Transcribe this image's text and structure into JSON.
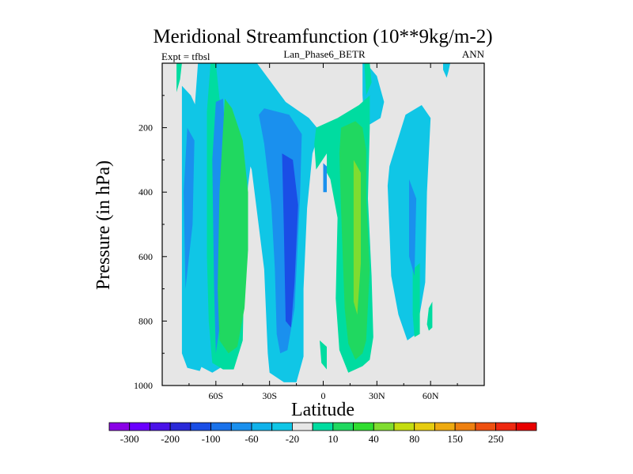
{
  "chart_data": {
    "type": "contour",
    "title": "Meridional Streamfunction (10**9kg/m-2)",
    "subtitle_left": "Expt = tfbsl",
    "subtitle_center": "Lan_Phase6_BETR",
    "subtitle_right": "ANN",
    "xlabel": "Latitude",
    "ylabel": "Pressure (in hPa)",
    "xlim": [
      -90,
      90
    ],
    "ylim": [
      1000,
      0
    ],
    "x_ticks": [
      {
        "value": -60,
        "label": "60S"
      },
      {
        "value": -30,
        "label": "30S"
      },
      {
        "value": 0,
        "label": "0"
      },
      {
        "value": 30,
        "label": "30N"
      },
      {
        "value": 60,
        "label": "60N"
      }
    ],
    "y_ticks": [
      {
        "value": 200,
        "label": "200"
      },
      {
        "value": 400,
        "label": "400"
      },
      {
        "value": 600,
        "label": "600"
      },
      {
        "value": 800,
        "label": "800"
      },
      {
        "value": 1000,
        "label": "1000"
      }
    ],
    "background_level": "-10 to 10",
    "colorbar": {
      "colors": [
        "#8a00e6",
        "#6a00ff",
        "#4a12e8",
        "#2a2ad8",
        "#1a4ee6",
        "#1a72ea",
        "#1a90ee",
        "#10b2ea",
        "#10c6e6",
        "#e6e6e6",
        "#00dca0",
        "#20d860",
        "#30dd30",
        "#80dc30",
        "#c4dc10",
        "#e6cc10",
        "#eeaa10",
        "#ee8010",
        "#ee5010",
        "#ee2810",
        "#e80000"
      ],
      "labels": [
        "-300",
        "-200",
        "-100",
        "-60",
        "-20",
        "10",
        "40",
        "80",
        "150",
        "250"
      ]
    },
    "regions": [
      {
        "label": "-20 to -10",
        "lat": [
          -79,
          -74,
          -69,
          -66,
          -64,
          -63,
          -65,
          -69,
          -76,
          -79
        ],
        "p": [
          70,
          100,
          160,
          330,
          500,
          700,
          900,
          955,
          945,
          900
        ]
      },
      {
        "label": "-20 to -10",
        "lat": [
          -70,
          -55,
          -38,
          -36,
          -38,
          -42,
          -45,
          -50,
          -56,
          -62,
          -69,
          -72,
          -74,
          -74,
          -72
        ],
        "p": [
          0,
          0,
          0,
          110,
          200,
          380,
          620,
          820,
          940,
          960,
          940,
          820,
          600,
          350,
          150
        ]
      },
      {
        "label": "-20 to -10",
        "lat": [
          -53,
          -37,
          -21,
          -8,
          -2,
          -6,
          -9,
          -11,
          -11,
          -15,
          -22,
          -30,
          -31,
          -33,
          -40,
          -50,
          -52
        ],
        "p": [
          0,
          0,
          120,
          170,
          210,
          280,
          450,
          700,
          910,
          990,
          990,
          960,
          900,
          640,
          330,
          190,
          80
        ]
      },
      {
        "label": "-20 to -10",
        "lat": [
          22,
          24,
          30,
          34,
          32,
          23,
          22
        ],
        "p": [
          0,
          0,
          40,
          120,
          170,
          200,
          100
        ]
      },
      {
        "label": "-20 to -10",
        "lat": [
          37,
          46,
          55,
          60,
          58,
          57,
          52,
          47,
          42,
          38,
          37,
          36
        ],
        "p": [
          320,
          160,
          130,
          170,
          400,
          680,
          840,
          860,
          780,
          660,
          520,
          380
        ]
      },
      {
        "label": "-20 to -10",
        "lat": [
          67,
          71,
          70,
          69,
          67
        ],
        "p": [
          0,
          0,
          25,
          45,
          20
        ]
      },
      {
        "label": "10 to 40",
        "lat": [
          -63,
          -60,
          -58,
          -53,
          -46,
          -44,
          -45,
          -50,
          -56,
          -62,
          -64,
          -65,
          -65
        ],
        "p": [
          0,
          0,
          110,
          200,
          420,
          620,
          860,
          950,
          950,
          930,
          800,
          600,
          150
        ]
      },
      {
        "label": "10 to 40",
        "lat": [
          -82,
          -79,
          -80,
          -82
        ],
        "p": [
          0,
          0,
          50,
          90
        ]
      },
      {
        "label": "10 to 40",
        "lat": [
          -4,
          8,
          20,
          26,
          26,
          25,
          27,
          28,
          26,
          22,
          14,
          9,
          7,
          8,
          4,
          2,
          2,
          -4,
          -5
        ],
        "p": [
          200,
          170,
          130,
          100,
          200,
          420,
          660,
          850,
          920,
          940,
          960,
          890,
          730,
          480,
          360,
          340,
          280,
          330,
          250
        ]
      },
      {
        "label": "10 to 40",
        "lat": [
          -2,
          2,
          2,
          -1
        ],
        "p": [
          860,
          880,
          950,
          930
        ]
      },
      {
        "label": "10 to 40",
        "lat": [
          23,
          26,
          27,
          24
        ],
        "p": [
          0,
          0,
          60,
          100
        ]
      },
      {
        "label": "10 to 40",
        "lat": [
          50,
          54,
          54,
          51,
          50
        ],
        "p": [
          640,
          620,
          840,
          850,
          780
        ]
      },
      {
        "label": "10 to 40",
        "lat": [
          59,
          61,
          61,
          59,
          58
        ],
        "p": [
          760,
          740,
          820,
          830,
          810
        ]
      },
      {
        "label": "-60 to -20",
        "lat": [
          -76,
          -72,
          -73,
          -77,
          -78
        ],
        "p": [
          200,
          240,
          500,
          700,
          400
        ]
      },
      {
        "label": "-60 to -20",
        "lat": [
          -60,
          -56,
          -54,
          -55,
          -58,
          -60,
          -61,
          -62
        ],
        "p": [
          120,
          110,
          300,
          560,
          820,
          900,
          700,
          300
        ]
      },
      {
        "label": "-60 to -20",
        "lat": [
          -33,
          -19,
          -12,
          -13,
          -16,
          -20,
          -24,
          -26,
          -27,
          -29,
          -33,
          -36
        ],
        "p": [
          140,
          160,
          220,
          420,
          760,
          890,
          900,
          840,
          640,
          440,
          250,
          160
        ]
      },
      {
        "label": "-60 to -20",
        "lat": [
          0,
          2,
          2,
          0
        ],
        "p": [
          310,
          320,
          400,
          400
        ]
      },
      {
        "label": "-60 to -20",
        "lat": [
          48,
          52,
          51,
          48
        ],
        "p": [
          360,
          420,
          660,
          600
        ]
      },
      {
        "label": "40 to 80",
        "lat": [
          -55,
          -51,
          -45,
          -42,
          -42,
          -44,
          -48,
          -53,
          -58,
          -59,
          -58
        ],
        "p": [
          110,
          140,
          240,
          400,
          580,
          760,
          880,
          900,
          860,
          700,
          400
        ]
      },
      {
        "label": "40 to 80",
        "lat": [
          10,
          18,
          22,
          24,
          24,
          26,
          24,
          22,
          18,
          14,
          12,
          10,
          9
        ],
        "p": [
          200,
          180,
          200,
          270,
          420,
          640,
          860,
          900,
          920,
          870,
          760,
          460,
          280
        ]
      },
      {
        "label": "-100 to -60",
        "lat": [
          -23,
          -17,
          -14,
          -16,
          -18,
          -21,
          -22
        ],
        "p": [
          280,
          300,
          440,
          680,
          820,
          800,
          520
        ]
      },
      {
        "label": "80 to 150",
        "lat": [
          17,
          21,
          21,
          19,
          17,
          17
        ],
        "p": [
          300,
          340,
          620,
          780,
          740,
          560
        ]
      }
    ],
    "legend_position": "bottom"
  }
}
